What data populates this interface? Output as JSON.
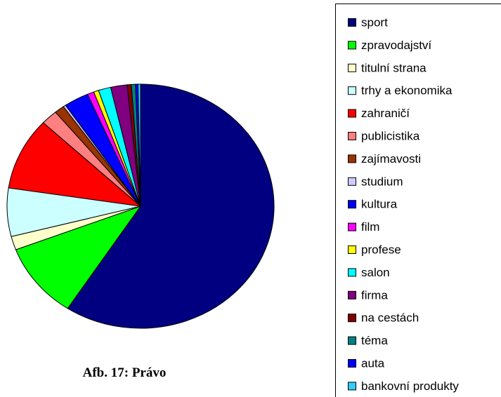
{
  "chart_data": {
    "type": "pie",
    "caption": "Afb. 17: Právo",
    "categories": [
      "sport",
      "zpravodajství",
      "titulní strana",
      "trhy a ekonomika",
      "zahraničí",
      "publicistika",
      "zajímavosti",
      "studium",
      "kultura",
      "film",
      "profese",
      "salon",
      "firma",
      "na cestách",
      "téma",
      "auta",
      "bankovní produkty"
    ],
    "values": [
      59.2,
      10,
      1.8,
      6.4,
      9.6,
      2,
      1.2,
      0.3,
      3,
      0.8,
      0.6,
      1.5,
      2,
      0.5,
      0.5,
      0.3,
      0.3
    ],
    "colors": [
      "#000080",
      "#00ff00",
      "#ffffcc",
      "#ccffff",
      "#ff0000",
      "#ff8080",
      "#993300",
      "#ccccff",
      "#0000ff",
      "#ff00ff",
      "#ffff00",
      "#00ffff",
      "#800080",
      "#800000",
      "#008080",
      "#0000ff",
      "#33ccff"
    ],
    "legend": "right"
  }
}
